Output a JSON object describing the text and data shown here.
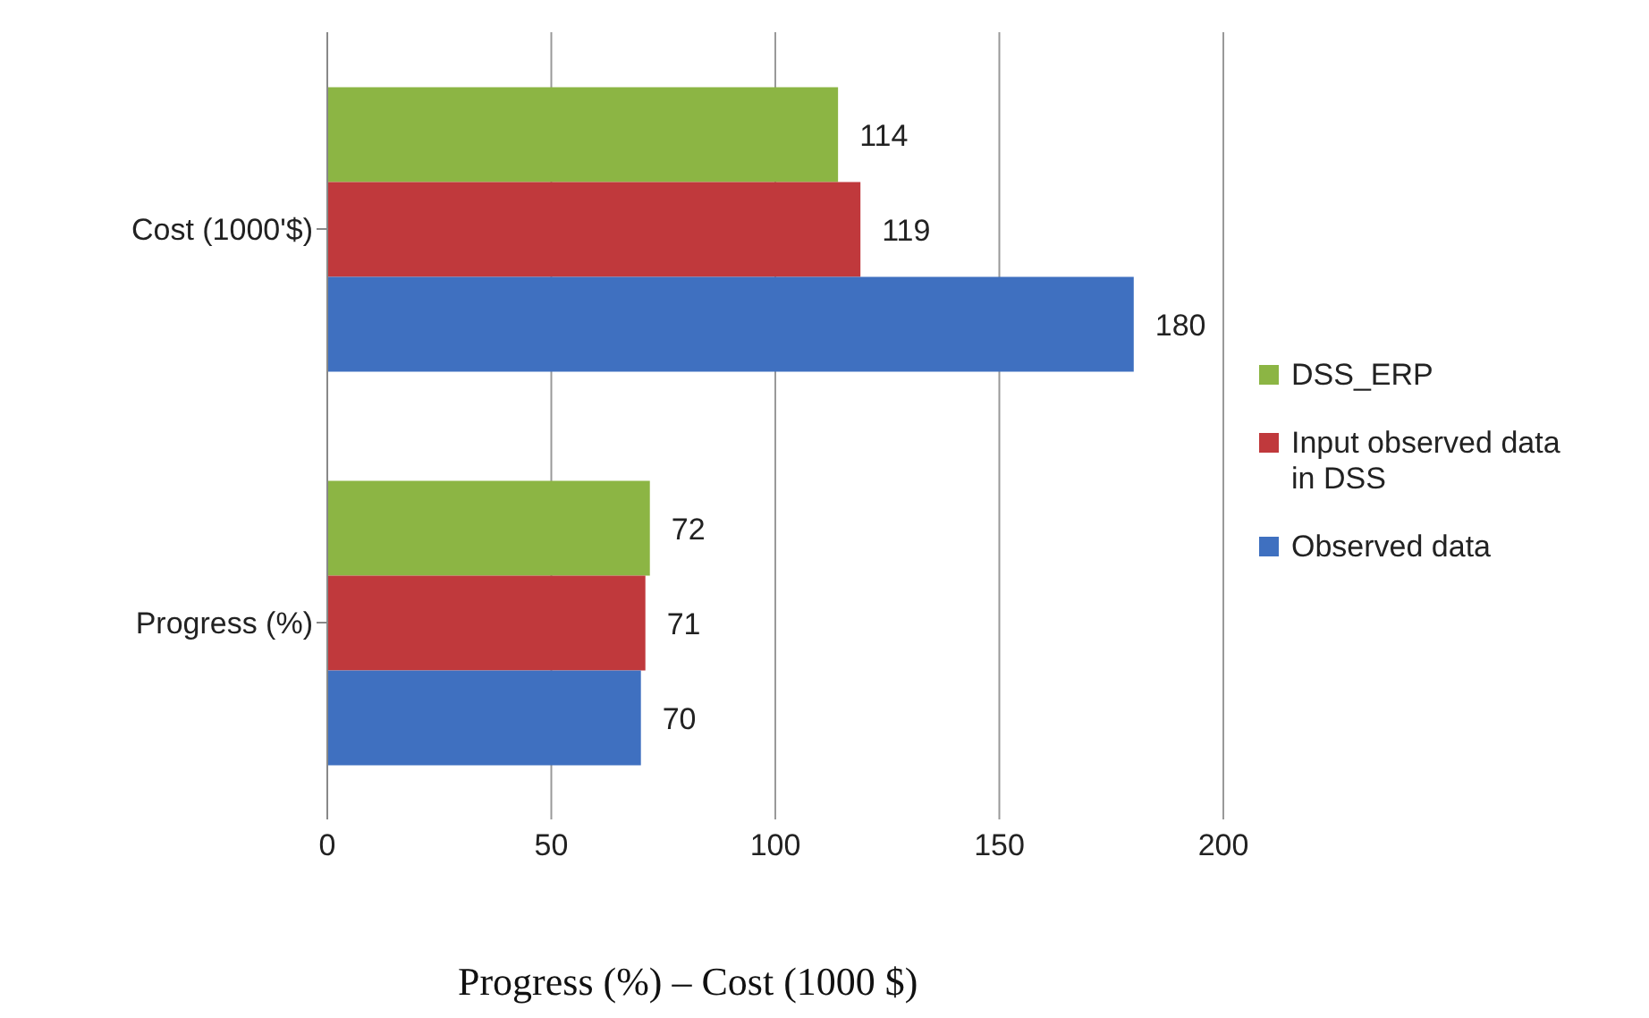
{
  "chart_data": {
    "type": "bar",
    "orientation": "horizontal",
    "xlabel": "Progress (%) – Cost (1000 $)",
    "categories": [
      "Cost (1000'$)",
      "Progress (%)"
    ],
    "series": [
      {
        "name": "DSS_ERP",
        "color": "#8cb544",
        "values": [
          114,
          72
        ]
      },
      {
        "name": "Input observed data in DSS",
        "color": "#c0393c",
        "values": [
          119,
          71
        ]
      },
      {
        "name": "Observed data",
        "color": "#3f70c0",
        "values": [
          180,
          70
        ]
      }
    ],
    "xlim": [
      0,
      200
    ],
    "xticks": [
      0,
      50,
      100,
      150,
      200
    ],
    "grid": "x",
    "legend": "right",
    "data_labels": true
  }
}
